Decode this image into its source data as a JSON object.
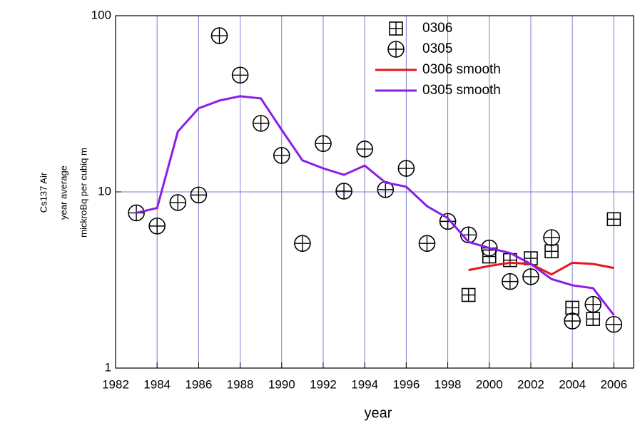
{
  "chart_data": {
    "type": "line",
    "log_y": true,
    "grid": true,
    "legend": "top",
    "x_label": "year",
    "y_label": [
      "Cs137 Air",
      "year average",
      "mickroBq per cubiq m"
    ],
    "x": [
      1983,
      1984,
      1985,
      1986,
      1987,
      1988,
      1989,
      1990,
      1991,
      1992,
      1993,
      1994,
      1995,
      1996,
      1997,
      1998,
      1999,
      2000,
      2001,
      2002,
      2003,
      2004,
      2005,
      2006
    ],
    "xlim": [
      1982,
      2006.95
    ],
    "xticks": [
      1982,
      1984,
      1986,
      1988,
      1990,
      1992,
      1994,
      1996,
      1998,
      2000,
      2002,
      2004,
      2006
    ],
    "ylim": [
      1,
      100
    ],
    "yticks": [
      1,
      10,
      100
    ],
    "series": [
      {
        "name": "0306",
        "marker": "square",
        "color": "#000000",
        "values": [
          null,
          null,
          null,
          null,
          null,
          null,
          null,
          null,
          null,
          null,
          null,
          null,
          null,
          null,
          null,
          null,
          2.6,
          4.3,
          4.1,
          4.2,
          4.6,
          2.2,
          1.9,
          7.0
        ]
      },
      {
        "name": "0305",
        "marker": "circle",
        "color": "#000000",
        "values": [
          7.6,
          6.4,
          8.7,
          9.6,
          77,
          46,
          24.5,
          16.1,
          5.1,
          18.8,
          10.1,
          17.5,
          10.3,
          13.6,
          5.1,
          6.8,
          5.7,
          4.8,
          3.1,
          3.3,
          5.5,
          1.85,
          2.3,
          1.77
        ]
      },
      {
        "name": "0306 smooth",
        "marker": "line",
        "color": "#e8161b",
        "values": [
          null,
          null,
          null,
          null,
          null,
          null,
          null,
          null,
          null,
          null,
          null,
          null,
          null,
          null,
          null,
          null,
          3.6,
          3.8,
          3.96,
          3.9,
          3.4,
          3.96,
          3.9,
          3.7
        ]
      },
      {
        "name": "0305 smooth",
        "marker": "line",
        "color": "#8a1ee6",
        "values": [
          7.6,
          8.1,
          22,
          29.8,
          33,
          34.9,
          33.9,
          22.5,
          15.1,
          13.6,
          12.5,
          14.1,
          11.3,
          10.7,
          8.3,
          7.1,
          5.2,
          4.8,
          4.5,
          3.9,
          3.2,
          2.95,
          2.84,
          2.0
        ]
      }
    ]
  }
}
